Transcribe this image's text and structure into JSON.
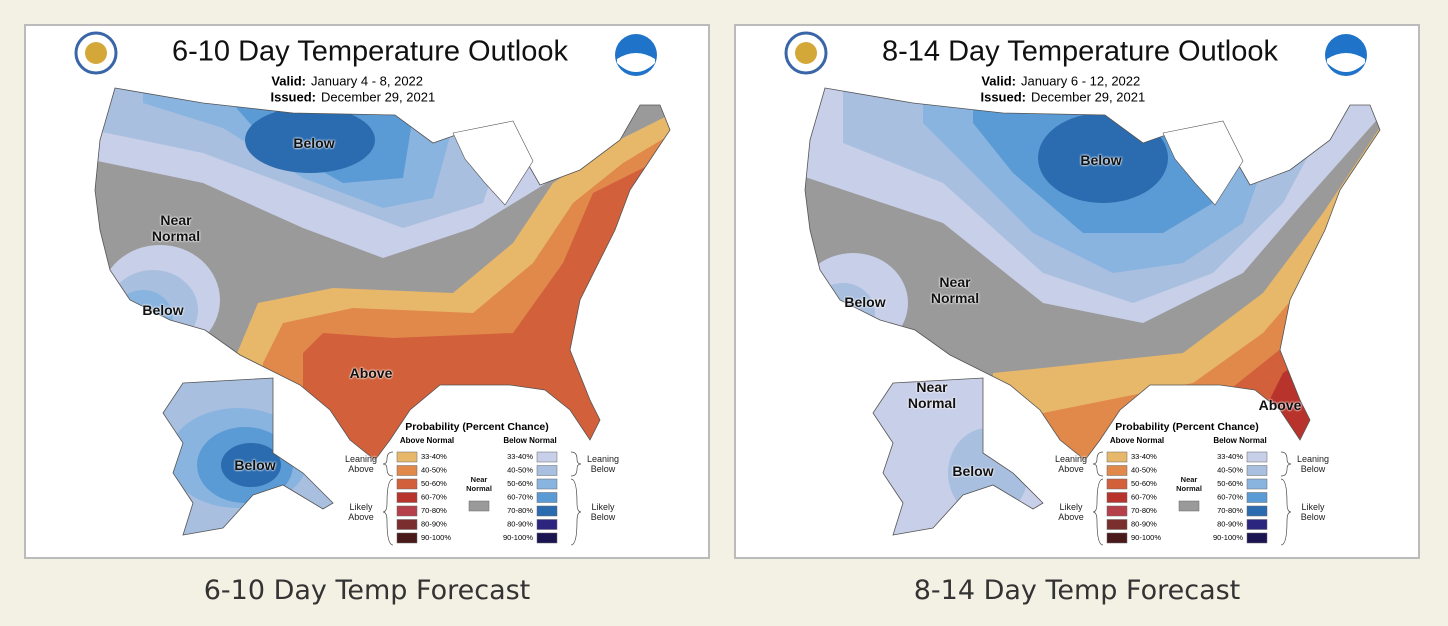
{
  "panels": [
    {
      "title": "6-10 Day Temperature Outlook",
      "valid_label": "Valid:",
      "valid": "January 4 - 8, 2022",
      "issued_label": "Issued:",
      "issued": "December 29, 2021",
      "regions": [
        "Below",
        "Near Normal",
        "Below",
        "Above",
        "Below"
      ],
      "legend": {
        "title": "Probability (Percent Chance)",
        "above_header": "Above Normal",
        "below_header": "Below Normal",
        "above_ranges": [
          "33-40%",
          "40-50%",
          "50-60%",
          "60-70%",
          "70-80%",
          "80-90%",
          "90-100%"
        ],
        "below_ranges": [
          "33-40%",
          "40-50%",
          "50-60%",
          "60-70%",
          "70-80%",
          "80-90%",
          "90-100%"
        ],
        "above_colors": [
          "#e8b86a",
          "#e0894a",
          "#d2603a",
          "#b8332b",
          "#b5404a",
          "#7a2e2e",
          "#4a1a1a"
        ],
        "below_colors": [
          "#c8cfe8",
          "#a8bfe0",
          "#8ab4e0",
          "#5b9bd5",
          "#2b6cb0",
          "#2b2580",
          "#1a1450"
        ],
        "near_normal": "Near Normal",
        "near_color": "#9a9a9a",
        "leaning_above": "Leaning Above",
        "likely_above": "Likely Above",
        "leaning_below": "Leaning Below",
        "likely_below": "Likely Below"
      },
      "caption": "6-10 Day Temp Forecast"
    },
    {
      "title": "8-14 Day Temperature Outlook",
      "valid_label": "Valid:",
      "valid": "January 6 - 12, 2022",
      "issued_label": "Issued:",
      "issued": "December 29, 2021",
      "regions": [
        "Below",
        "Below",
        "Near Normal",
        "Above",
        "Near Normal",
        "Below"
      ],
      "legend": {
        "title": "Probability (Percent Chance)",
        "above_header": "Above Normal",
        "below_header": "Below Normal",
        "above_ranges": [
          "33-40%",
          "40-50%",
          "50-60%",
          "60-70%",
          "70-80%",
          "80-90%",
          "90-100%"
        ],
        "below_ranges": [
          "33-40%",
          "40-50%",
          "50-60%",
          "60-70%",
          "70-80%",
          "80-90%",
          "90-100%"
        ],
        "above_colors": [
          "#e8b86a",
          "#e0894a",
          "#d2603a",
          "#b8332b",
          "#b5404a",
          "#7a2e2e",
          "#4a1a1a"
        ],
        "below_colors": [
          "#c8cfe8",
          "#a8bfe0",
          "#8ab4e0",
          "#5b9bd5",
          "#2b6cb0",
          "#2b2580",
          "#1a1450"
        ],
        "near_normal": "Near Normal",
        "near_color": "#9a9a9a",
        "leaning_above": "Leaning Above",
        "likely_above": "Likely Above",
        "leaning_below": "Leaning Below",
        "likely_below": "Likely Below"
      },
      "caption": "8-14 Day Temp Forecast"
    }
  ]
}
